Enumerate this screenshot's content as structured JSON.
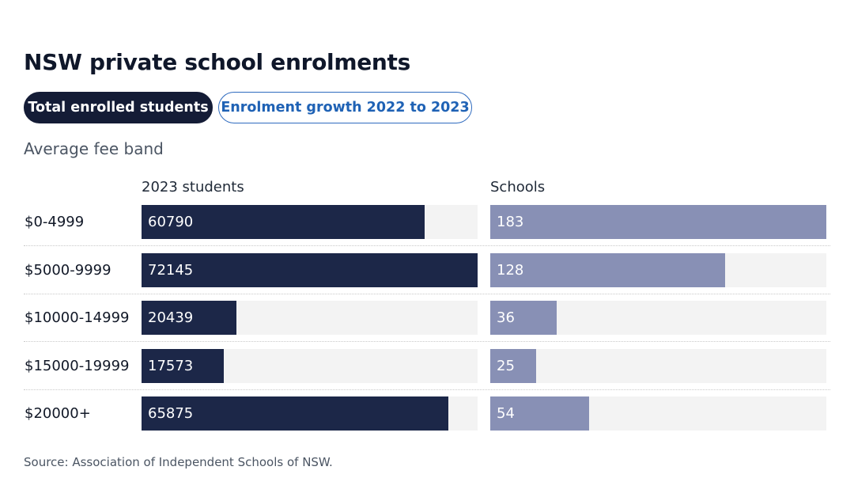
{
  "header": {
    "title": "NSW private school enrolments",
    "tabs": [
      {
        "label": "Total enrolled students",
        "active": true
      },
      {
        "label": "Enrolment growth 2022 to 2023",
        "active": false
      }
    ],
    "subtitle": "Average fee band"
  },
  "chart_data": {
    "type": "bar",
    "orientation": "horizontal",
    "title": "NSW private school enrolments",
    "category_label": "Average fee band",
    "categories": [
      "$0-4999",
      "$5000-9999",
      "$10000-14999",
      "$15000-19999",
      "$20000+"
    ],
    "series": [
      {
        "name": "2023 students",
        "values": [
          60790,
          72145,
          20439,
          17573,
          65875
        ],
        "color": "#1c2748",
        "max": 72145
      },
      {
        "name": "Schools",
        "values": [
          183,
          128,
          36,
          25,
          54
        ],
        "color": "#8890b5",
        "max": 183
      }
    ]
  },
  "footer": {
    "source": "Source: Association of Independent Schools of NSW."
  },
  "colors": {
    "students_bar": "#1c2748",
    "schools_bar": "#8890b5",
    "track": "#f3f3f3",
    "active_tab_bg": "#141c36",
    "inactive_tab_text": "#1f62b5"
  }
}
